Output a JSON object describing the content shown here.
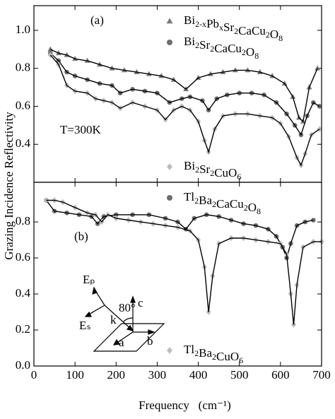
{
  "chart_data": [
    {
      "type": "scatter-line",
      "ylabel": "Grazing Incidence Reflectivity",
      "xlim": [
        0,
        700
      ],
      "xticks": [
        0,
        100,
        200,
        300,
        400,
        500,
        600,
        700
      ],
      "ylim": [
        0.2,
        1.13
      ],
      "yticks": [
        0.4,
        0.6,
        0.8,
        {
          "value": 1,
          "label": "1.0"
        }
      ],
      "annotations": {
        "panel": "(a)",
        "temperature": "T=300K"
      },
      "series": [
        {
          "name": "Bi2-xPbxSr2CaCu2O8",
          "color": "#7a7a7a",
          "marker": "triangle",
          "x": [
            40,
            60,
            80,
            100,
            130,
            160,
            190,
            220,
            250,
            280,
            310,
            340,
            370,
            400,
            430,
            460,
            490,
            520,
            550,
            580,
            610,
            630,
            645,
            655,
            670,
            690
          ],
          "values": [
            0.9,
            0.88,
            0.87,
            0.85,
            0.84,
            0.82,
            0.8,
            0.79,
            0.78,
            0.77,
            0.76,
            0.74,
            0.69,
            0.75,
            0.77,
            0.78,
            0.79,
            0.79,
            0.78,
            0.76,
            0.72,
            0.65,
            0.54,
            0.52,
            0.7,
            0.8
          ]
        },
        {
          "name": "Bi2Sr2CaCu2O8",
          "color": "#6e6e6e",
          "marker": "circle",
          "x": [
            40,
            60,
            80,
            100,
            130,
            160,
            190,
            210,
            240,
            270,
            300,
            330,
            360,
            380,
            410,
            425,
            445,
            470,
            500,
            530,
            560,
            590,
            615,
            635,
            650,
            665,
            680,
            695
          ],
          "values": [
            0.88,
            0.84,
            0.78,
            0.76,
            0.74,
            0.72,
            0.71,
            0.67,
            0.69,
            0.68,
            0.67,
            0.62,
            0.64,
            0.65,
            0.63,
            0.58,
            0.64,
            0.66,
            0.67,
            0.67,
            0.66,
            0.62,
            0.56,
            0.5,
            0.45,
            0.55,
            0.62,
            0.6
          ]
        },
        {
          "name": "Bi2Sr2CuO6",
          "color": "#bdbdbd",
          "marker": "diamond",
          "x": [
            40,
            60,
            80,
            100,
            130,
            150,
            170,
            190,
            210,
            240,
            270,
            300,
            320,
            340,
            360,
            380,
            400,
            415,
            425,
            440,
            460,
            490,
            520,
            550,
            580,
            600,
            620,
            640,
            650,
            660,
            675,
            695
          ],
          "values": [
            0.87,
            0.82,
            0.71,
            0.68,
            0.67,
            0.64,
            0.63,
            0.62,
            0.59,
            0.62,
            0.6,
            0.58,
            0.53,
            0.58,
            0.6,
            0.58,
            0.52,
            0.42,
            0.36,
            0.48,
            0.55,
            0.56,
            0.56,
            0.55,
            0.54,
            0.51,
            0.44,
            0.33,
            0.29,
            0.35,
            0.45,
            0.48
          ]
        }
      ]
    },
    {
      "type": "scatter-line",
      "xlabel": "Frequency   (cm⁻¹)",
      "xlim": [
        0,
        700
      ],
      "xticks": [
        0,
        100,
        200,
        300,
        400,
        500,
        600,
        700
      ],
      "ylim": [
        0,
        1.02
      ],
      "yticks": [
        {
          "value": 0,
          "label": "0.0"
        },
        0.2,
        0.4,
        0.6,
        0.8
      ],
      "annotations": {
        "panel": "(b)"
      },
      "inset": {
        "ep": "Eₚ",
        "es": "Eₛ",
        "k": "k",
        "angle": "80°",
        "c": "c",
        "a": "a",
        "b": "b"
      },
      "series": [
        {
          "name": "Tl2Ba2CaCu2O8",
          "color": "#6e6e6e",
          "marker": "circle",
          "x": [
            30,
            50,
            80,
            110,
            140,
            155,
            170,
            200,
            240,
            280,
            320,
            350,
            370,
            390,
            420,
            450,
            480,
            510,
            540,
            570,
            590,
            605,
            615,
            625,
            640,
            660,
            680
          ],
          "values": [
            0.92,
            0.86,
            0.85,
            0.84,
            0.83,
            0.79,
            0.83,
            0.84,
            0.84,
            0.84,
            0.82,
            0.8,
            0.76,
            0.82,
            0.84,
            0.83,
            0.81,
            0.79,
            0.78,
            0.76,
            0.72,
            0.66,
            0.6,
            0.68,
            0.78,
            0.8,
            0.81
          ]
        },
        {
          "name": "Tl2Ba2CuO6",
          "color": "#bdbdbd",
          "marker": "diamond",
          "x": [
            30,
            50,
            70,
            100,
            130,
            150,
            165,
            180,
            200,
            230,
            260,
            290,
            320,
            350,
            380,
            400,
            415,
            425,
            435,
            450,
            480,
            510,
            540,
            570,
            600,
            615,
            625,
            632,
            640,
            655,
            680,
            700
          ],
          "values": [
            0.92,
            0.92,
            0.91,
            0.88,
            0.85,
            0.84,
            0.8,
            0.84,
            0.82,
            0.81,
            0.8,
            0.79,
            0.78,
            0.77,
            0.75,
            0.7,
            0.55,
            0.3,
            0.5,
            0.68,
            0.71,
            0.71,
            0.7,
            0.69,
            0.68,
            0.62,
            0.4,
            0.23,
            0.45,
            0.66,
            0.69,
            0.69
          ]
        }
      ]
    }
  ]
}
